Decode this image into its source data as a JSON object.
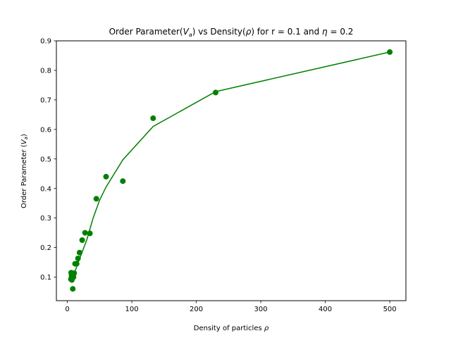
{
  "chart_data": {
    "type": "scatter",
    "title": "Order Parameter(Va) vs Density(ρ) for r = 0.1 and η = 0.2",
    "title_parts": {
      "p1": "Order Parameter(",
      "va_main": "V",
      "va_sub": "a",
      "p2": ") vs Density(",
      "rho": "ρ",
      "p3": ") for r = 0.1 and ",
      "eta": "η",
      "p4": " = 0.2"
    },
    "xlabel": "Density of particles ρ",
    "xlabel_parts": {
      "text": "Density of particles ",
      "sym": "ρ"
    },
    "ylabel": "Order Parameter (Va)",
    "ylabel_parts": {
      "text": "Order Parameter (",
      "main": "V",
      "sub": "a",
      "close": ")"
    },
    "xlim": [
      -17,
      525
    ],
    "ylim": [
      0.02,
      0.9
    ],
    "xticks": [
      0,
      100,
      200,
      300,
      400,
      500
    ],
    "yticks": [
      0.1,
      0.2,
      0.3,
      0.4,
      0.5,
      0.6,
      0.7,
      0.8,
      0.9
    ],
    "xtick_labels": [
      "0",
      "100",
      "200",
      "300",
      "400",
      "500"
    ],
    "ytick_labels": [
      "0.1",
      "0.2",
      "0.3",
      "0.4",
      "0.5",
      "0.6",
      "0.7",
      "0.8",
      "0.9"
    ],
    "grid": false,
    "color": "#008000",
    "series": [
      {
        "kind": "scatter",
        "points": [
          {
            "x": 5.5,
            "y": 0.093
          },
          {
            "x": 6.0,
            "y": 0.115
          },
          {
            "x": 6.5,
            "y": 0.105
          },
          {
            "x": 7.0,
            "y": 0.09
          },
          {
            "x": 7.5,
            "y": 0.099
          },
          {
            "x": 8.5,
            "y": 0.06
          },
          {
            "x": 9.5,
            "y": 0.1
          },
          {
            "x": 10.5,
            "y": 0.113
          },
          {
            "x": 12.0,
            "y": 0.145
          },
          {
            "x": 14.5,
            "y": 0.145
          },
          {
            "x": 16.5,
            "y": 0.163
          },
          {
            "x": 19.0,
            "y": 0.183
          },
          {
            "x": 23.0,
            "y": 0.225
          },
          {
            "x": 27.5,
            "y": 0.25
          },
          {
            "x": 35.0,
            "y": 0.248
          },
          {
            "x": 45.0,
            "y": 0.365
          },
          {
            "x": 60.0,
            "y": 0.44
          },
          {
            "x": 86.0,
            "y": 0.425
          },
          {
            "x": 133.0,
            "y": 0.638
          },
          {
            "x": 230.0,
            "y": 0.725
          },
          {
            "x": 500.0,
            "y": 0.862
          }
        ]
      },
      {
        "kind": "line",
        "points": [
          {
            "x": 5.5,
            "y": 0.095
          },
          {
            "x": 8,
            "y": 0.1
          },
          {
            "x": 12,
            "y": 0.12
          },
          {
            "x": 17,
            "y": 0.15
          },
          {
            "x": 23,
            "y": 0.185
          },
          {
            "x": 30,
            "y": 0.225
          },
          {
            "x": 40,
            "y": 0.3
          },
          {
            "x": 50,
            "y": 0.36
          },
          {
            "x": 60,
            "y": 0.405
          },
          {
            "x": 86,
            "y": 0.497
          },
          {
            "x": 133,
            "y": 0.61
          },
          {
            "x": 230,
            "y": 0.728
          },
          {
            "x": 500,
            "y": 0.862
          }
        ]
      }
    ]
  }
}
